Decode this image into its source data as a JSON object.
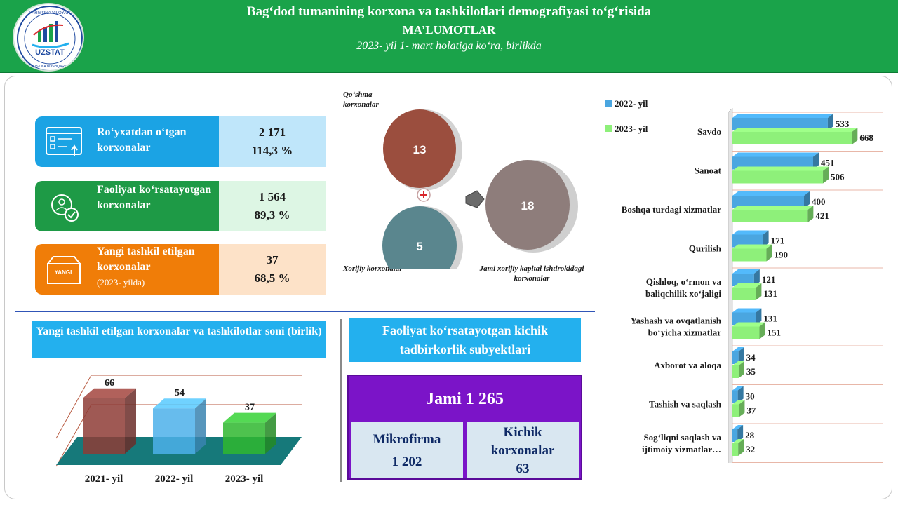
{
  "header": {
    "title": "Bag‘dod tumanining korxona va tashkilotlari demografiyasi to‘g‘risida",
    "subtitle": "MA’LUMOTLAR",
    "note": "2023- yil 1- mart holatiga ko‘ra, birlikda",
    "logo_text": "UZSTAT",
    "logo_ring_top": "FARG‘ONA VILOYATI",
    "logo_ring_bottom": "STATISTIKA BOSHQARMASI"
  },
  "kpis": [
    {
      "label": "Ro‘yxatdan o‘tgan korxonalar",
      "value": "2 171",
      "percent": "114,3 %",
      "color": "#1ba3e4",
      "bg": "#bfe6fa"
    },
    {
      "label": "Faoliyat ko‘rsatayotgan korxonalar",
      "value": "1 564",
      "percent": "89,3 %",
      "color": "#1e9a46",
      "bg": "#ddf6e4"
    },
    {
      "label": "Yangi tashkil etilgan korxonalar",
      "label_note": "(2023- yilda)",
      "value": "37",
      "percent": "68,5 %",
      "color": "#f07d08",
      "bg": "#fde2c8",
      "icon_text": "YANGI"
    }
  ],
  "circles": {
    "joint": {
      "label": "Qo‘shma korxonalar",
      "value": "13",
      "color": "#9b4e3e"
    },
    "foreign": {
      "label": "Xorijiy korxonalar",
      "value": "5",
      "color": "#5a868e"
    },
    "total": {
      "label": "Jami xorijiy kapital ishtirokidagi korxonalar",
      "value": "18",
      "color": "#8e7d7b"
    }
  },
  "chart_data": [
    {
      "type": "bar",
      "title": "Yangi tashkil etilgan korxonalar va tashkilotlar soni (birlik)",
      "categories": [
        "2021- yil",
        "2022- yil",
        "2023- yil"
      ],
      "values": [
        66,
        54,
        37
      ],
      "colors": [
        "#8e3c36",
        "#4cb0ea",
        "#2fb72f"
      ],
      "ylim": [
        0,
        70
      ]
    },
    {
      "type": "bar",
      "orientation": "horizontal",
      "legend": "top-left",
      "categories": [
        "Savdo",
        "Sanoat",
        "Boshqa turdagi xizmatlar",
        "Qurilish",
        "Qishloq, o‘rmon va baliqchilik xo‘jaligi",
        "Yashash va ovqatlanish bo‘yicha xizmatlar",
        "Axborot va aloqa",
        "Tashish va saqlash",
        "Sog‘liqni saqlash va ijtimoiy xizmatlar…"
      ],
      "series": [
        {
          "name": "2022- yil",
          "values": [
            533,
            451,
            400,
            171,
            121,
            131,
            34,
            30,
            28
          ],
          "color": "#4aa6e0"
        },
        {
          "name": "2023- yil",
          "values": [
            668,
            506,
            421,
            190,
            131,
            151,
            35,
            37,
            32
          ],
          "color": "#8ef07a"
        }
      ]
    }
  ],
  "small_business": {
    "title": "Faoliyat ko‘rsatayotgan kichik tadbirkorlik subyektlari",
    "total": "Jami 1 265",
    "micro_label": "Mikrofirma",
    "micro_value": "1 202",
    "small_label": "Kichik korxonalar",
    "small_value": "63"
  }
}
